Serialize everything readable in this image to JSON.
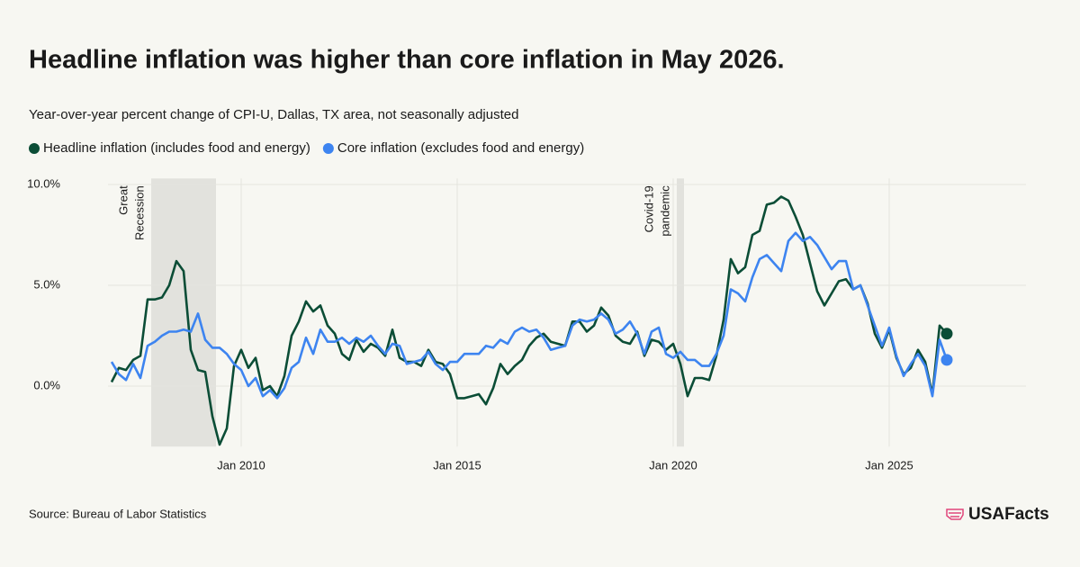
{
  "title": "Headline inflation was higher than core inflation in May 2026.",
  "source": "Source: Bureau of Labor Statistics",
  "logo": "USAFacts",
  "chart_data": {
    "type": "line",
    "subtitle": "Year-over-year percent change of CPI-U, Dallas, TX area, not seasonally adjusted",
    "x": [
      "2007-01",
      "2007-03",
      "2007-05",
      "2007-07",
      "2007-09",
      "2007-11",
      "2008-01",
      "2008-03",
      "2008-05",
      "2008-07",
      "2008-09",
      "2008-11",
      "2009-01",
      "2009-03",
      "2009-05",
      "2009-07",
      "2009-09",
      "2009-11",
      "2010-01",
      "2010-03",
      "2010-05",
      "2010-07",
      "2010-09",
      "2010-11",
      "2011-01",
      "2011-03",
      "2011-05",
      "2011-07",
      "2011-09",
      "2011-11",
      "2012-01",
      "2012-03",
      "2012-05",
      "2012-07",
      "2012-09",
      "2012-11",
      "2013-01",
      "2013-03",
      "2013-05",
      "2013-07",
      "2013-09",
      "2013-11",
      "2014-01",
      "2014-03",
      "2014-05",
      "2014-07",
      "2014-09",
      "2014-11",
      "2015-01",
      "2015-03",
      "2015-05",
      "2015-07",
      "2015-09",
      "2015-11",
      "2016-01",
      "2016-03",
      "2016-05",
      "2016-07",
      "2016-09",
      "2016-11",
      "2017-01",
      "2017-03",
      "2017-05",
      "2017-07",
      "2017-09",
      "2017-11",
      "2018-01",
      "2018-03",
      "2018-05",
      "2018-07",
      "2018-09",
      "2018-11",
      "2019-01",
      "2019-03",
      "2019-05",
      "2019-07",
      "2019-09",
      "2019-11",
      "2020-01",
      "2020-03",
      "2020-05",
      "2020-07",
      "2020-09",
      "2020-11",
      "2021-01",
      "2021-03",
      "2021-05",
      "2021-07",
      "2021-09",
      "2021-11",
      "2022-01",
      "2022-03",
      "2022-05",
      "2022-07",
      "2022-09",
      "2022-11",
      "2023-01",
      "2023-03",
      "2023-05",
      "2023-07",
      "2023-09",
      "2023-11",
      "2024-01",
      "2024-03",
      "2024-05",
      "2024-07",
      "2024-09",
      "2024-11",
      "2025-01",
      "2025-03",
      "2025-05",
      "2025-07",
      "2025-09",
      "2025-11",
      "2026-01",
      "2026-03",
      "2026-05"
    ],
    "series": [
      {
        "name": "Headline inflation (includes food and energy)",
        "color": "#0b4d36",
        "values": [
          0.2,
          0.9,
          0.8,
          1.3,
          1.5,
          4.3,
          4.3,
          4.4,
          5.0,
          6.2,
          5.7,
          1.8,
          0.8,
          0.7,
          -1.5,
          -2.9,
          -2.1,
          1.0,
          1.8,
          0.9,
          1.4,
          -0.2,
          0.0,
          -0.5,
          0.5,
          2.5,
          3.2,
          4.2,
          3.7,
          4.0,
          3.0,
          2.6,
          1.6,
          1.3,
          2.3,
          1.7,
          2.1,
          1.9,
          1.5,
          2.8,
          1.4,
          1.2,
          1.2,
          1.0,
          1.8,
          1.2,
          1.1,
          0.6,
          -0.6,
          -0.6,
          -0.5,
          -0.4,
          -0.9,
          -0.1,
          1.1,
          0.6,
          1.0,
          1.3,
          2.0,
          2.4,
          2.6,
          2.2,
          2.1,
          2.0,
          3.2,
          3.2,
          2.7,
          3.0,
          3.9,
          3.5,
          2.5,
          2.2,
          2.1,
          2.7,
          1.5,
          2.3,
          2.2,
          1.8,
          2.1,
          1.1,
          -0.5,
          0.4,
          0.4,
          0.3,
          1.5,
          3.3,
          6.3,
          5.6,
          5.9,
          7.5,
          7.7,
          9.0,
          9.1,
          9.4,
          9.2,
          8.4,
          7.5,
          6.1,
          4.7,
          4.0,
          4.6,
          5.2,
          5.3,
          4.8,
          5.0,
          4.1,
          2.6,
          1.9,
          2.8,
          1.4,
          0.6,
          0.9,
          1.8,
          1.2,
          -0.4,
          3.0,
          2.6
        ]
      },
      {
        "name": "Core inflation (excludes food and energy)",
        "color": "#3d84f0",
        "values": [
          1.2,
          0.6,
          0.3,
          1.1,
          0.4,
          2.0,
          2.2,
          2.5,
          2.7,
          2.7,
          2.8,
          2.7,
          3.6,
          2.3,
          1.9,
          1.9,
          1.6,
          1.1,
          0.8,
          0.0,
          0.4,
          -0.5,
          -0.2,
          -0.6,
          -0.1,
          0.9,
          1.2,
          2.4,
          1.6,
          2.8,
          2.2,
          2.2,
          2.4,
          2.1,
          2.4,
          2.2,
          2.5,
          2.0,
          1.6,
          2.1,
          2.0,
          1.1,
          1.2,
          1.3,
          1.7,
          1.1,
          0.8,
          1.2,
          1.2,
          1.6,
          1.6,
          1.6,
          2.0,
          1.9,
          2.3,
          2.1,
          2.7,
          2.9,
          2.7,
          2.8,
          2.4,
          1.8,
          1.9,
          2.0,
          3.0,
          3.3,
          3.2,
          3.3,
          3.6,
          3.3,
          2.6,
          2.8,
          3.2,
          2.6,
          1.6,
          2.7,
          2.9,
          1.6,
          1.4,
          1.7,
          1.3,
          1.3,
          1.0,
          1.0,
          1.6,
          2.5,
          4.8,
          4.6,
          4.2,
          5.4,
          6.3,
          6.5,
          6.1,
          5.7,
          7.2,
          7.6,
          7.2,
          7.4,
          7.0,
          6.4,
          5.8,
          6.2,
          6.2,
          4.8,
          5.0,
          4.0,
          3.0,
          2.0,
          2.9,
          1.5,
          0.5,
          1.1,
          1.6,
          1.0,
          -0.5,
          2.3,
          1.3
        ]
      }
    ],
    "xlim": [
      "2006-12",
      "2028-03"
    ],
    "xticks": [
      {
        "value": "2010-01",
        "label": "Jan 2010"
      },
      {
        "value": "2015-01",
        "label": "Jan 2015"
      },
      {
        "value": "2020-01",
        "label": "Jan 2020"
      },
      {
        "value": "2025-01",
        "label": "Jan 2025"
      }
    ],
    "ylim": [
      -3,
      10.3
    ],
    "yticks": [
      {
        "value": 0,
        "label": "0.0%"
      },
      {
        "value": 5,
        "label": "5.0%"
      },
      {
        "value": 10,
        "label": "10.0%"
      }
    ],
    "grid": true,
    "shaded": [
      {
        "start": "2007-12",
        "end": "2009-06",
        "label": [
          "Great",
          "Recession"
        ]
      },
      {
        "start": "2020-02",
        "end": "2020-04",
        "label": [
          "Covid-19",
          "pandemic"
        ]
      }
    ]
  }
}
